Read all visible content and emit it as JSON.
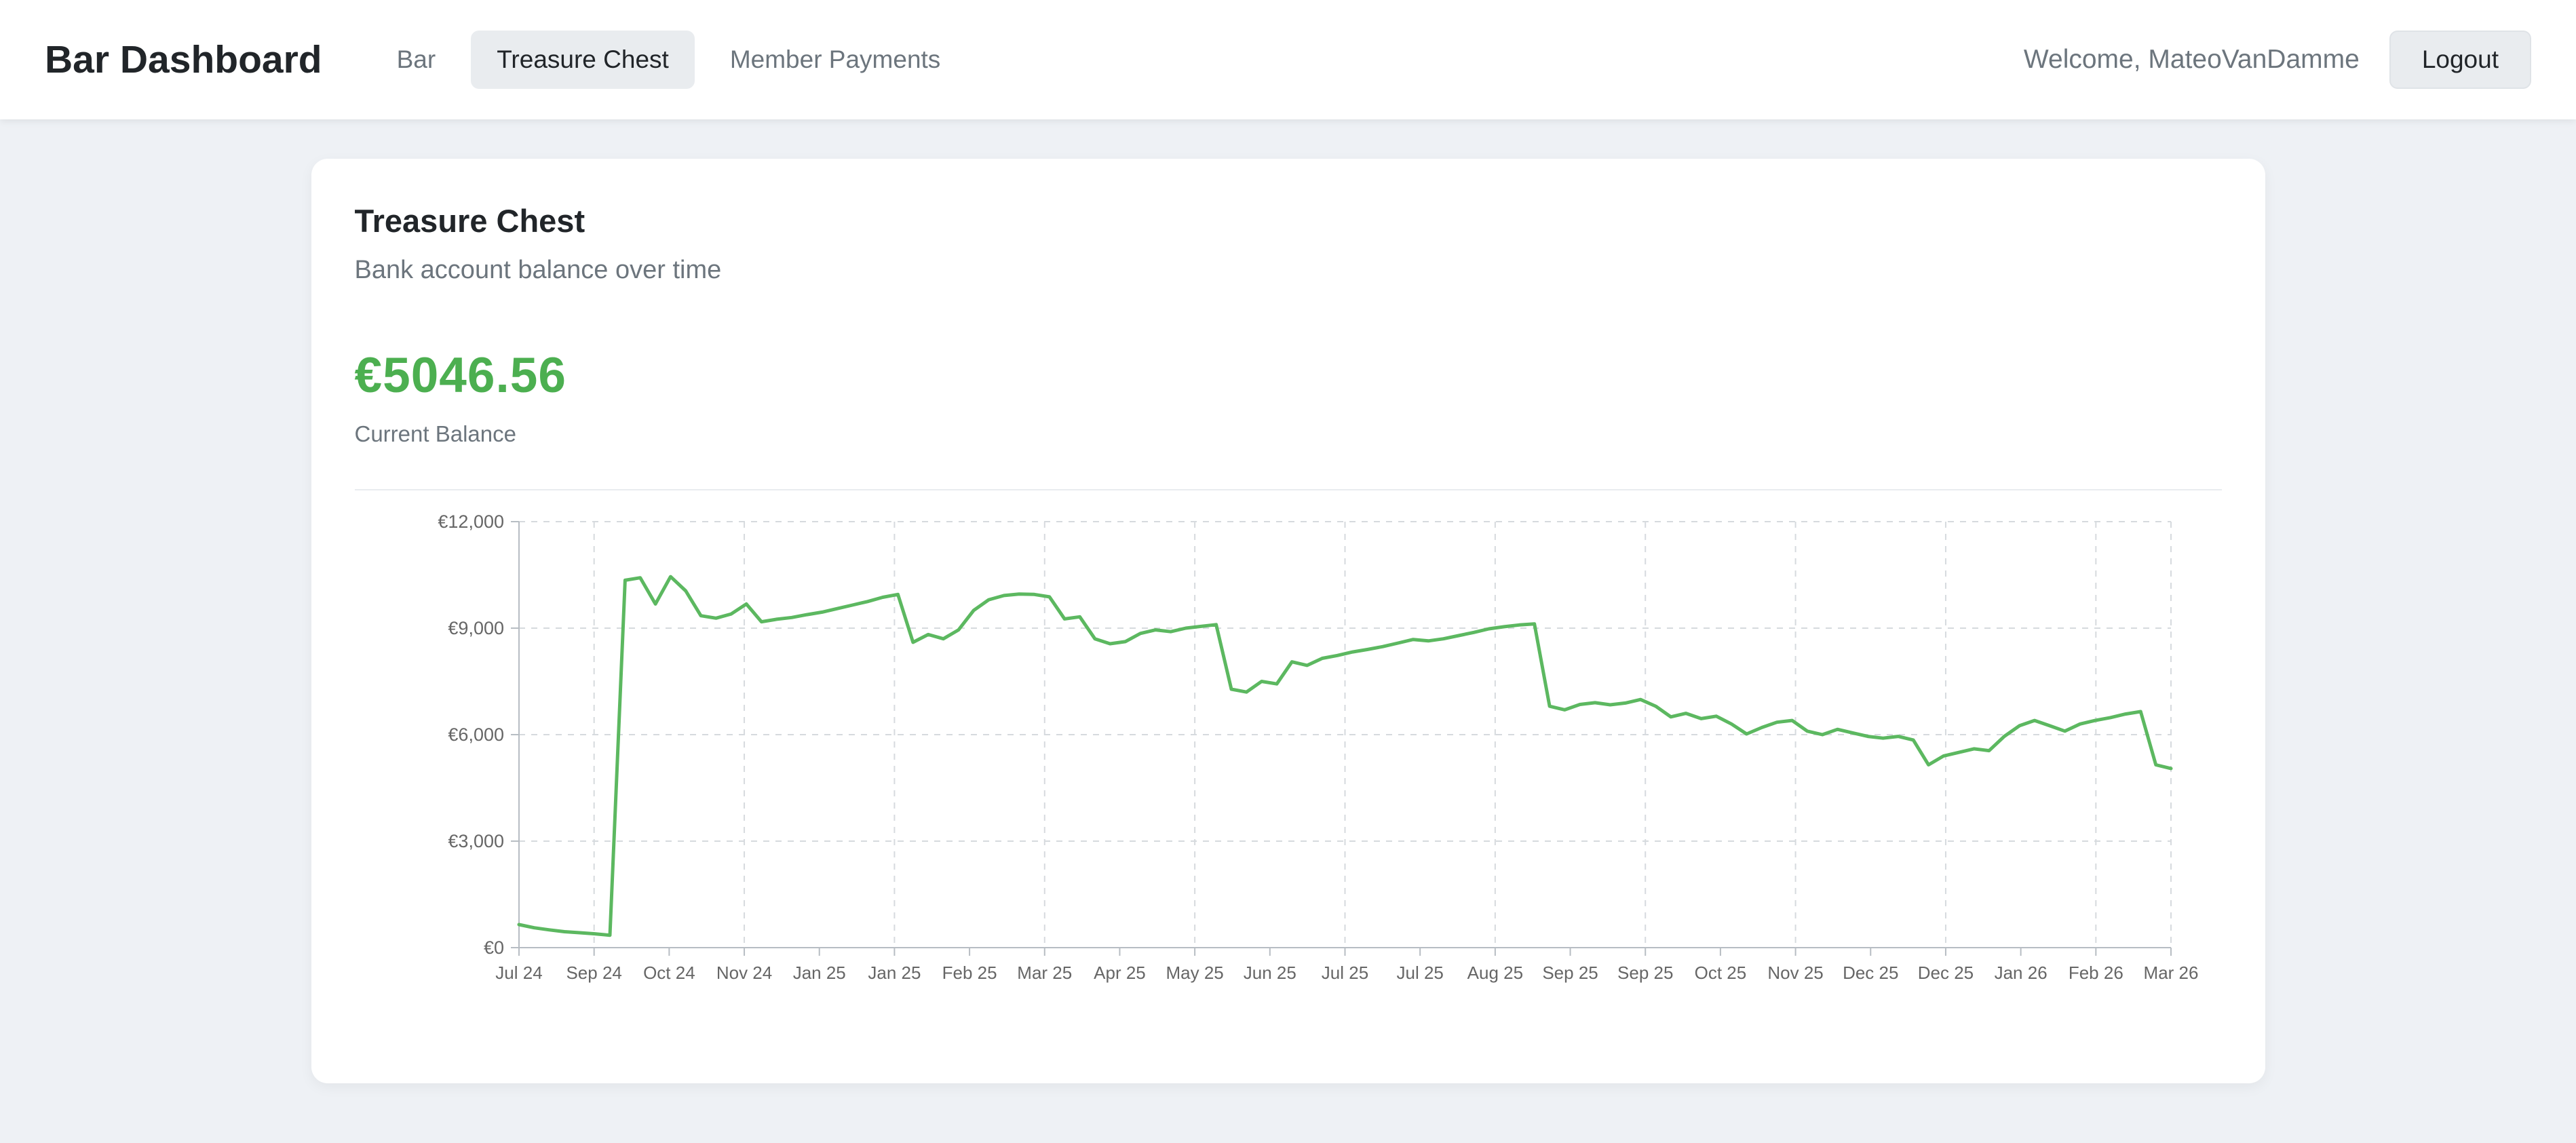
{
  "navbar": {
    "brand": "Bar Dashboard",
    "items": [
      {
        "label": "Bar",
        "active": false
      },
      {
        "label": "Treasure Chest",
        "active": true
      },
      {
        "label": "Member Payments",
        "active": false
      }
    ],
    "welcome": "Welcome, MateoVanDamme",
    "logout_label": "Logout"
  },
  "card": {
    "title": "Treasure Chest",
    "subtitle": "Bank account balance over time",
    "balance": "€5046.56",
    "balance_label": "Current Balance"
  },
  "colors": {
    "accent_green": "#4caf50",
    "line_green": "#5cb860",
    "grid": "#d6dade",
    "axis": "#b7bdc3",
    "tick_label": "#666666",
    "muted_bg": "#e9ecef"
  },
  "chart_data": {
    "type": "line",
    "title": "Bank account balance over time",
    "xlabel": "",
    "ylabel": "",
    "legend": false,
    "grid": true,
    "y_min": 0,
    "y_max": 12000,
    "line_color": "#5cb860",
    "y_ticks": [
      {
        "value": 0,
        "label": "€0"
      },
      {
        "value": 3000,
        "label": "€3,000"
      },
      {
        "value": 6000,
        "label": "€6,000"
      },
      {
        "value": 9000,
        "label": "€9,000"
      },
      {
        "value": 12000,
        "label": "€12,000"
      }
    ],
    "x_ticks": [
      {
        "label": "Jul 24",
        "grid": false
      },
      {
        "label": "Sep 24",
        "grid": true
      },
      {
        "label": "Oct 24",
        "grid": false
      },
      {
        "label": "Nov 24",
        "grid": true
      },
      {
        "label": "Jan 25",
        "grid": false
      },
      {
        "label": "Jan 25",
        "grid": true
      },
      {
        "label": "Feb 25",
        "grid": false
      },
      {
        "label": "Mar 25",
        "grid": true
      },
      {
        "label": "Apr 25",
        "grid": false
      },
      {
        "label": "May 25",
        "grid": true
      },
      {
        "label": "Jun 25",
        "grid": false
      },
      {
        "label": "Jul 25",
        "grid": true
      },
      {
        "label": "Jul 25",
        "grid": false
      },
      {
        "label": "Aug 25",
        "grid": true
      },
      {
        "label": "Sep 25",
        "grid": false
      },
      {
        "label": "Sep 25",
        "grid": true
      },
      {
        "label": "Oct 25",
        "grid": false
      },
      {
        "label": "Nov 25",
        "grid": true
      },
      {
        "label": "Dec 25",
        "grid": false
      },
      {
        "label": "Dec 25",
        "grid": true
      },
      {
        "label": "Jan 26",
        "grid": false
      },
      {
        "label": "Feb 26",
        "grid": true
      },
      {
        "label": "Mar 26",
        "grid": true
      }
    ],
    "values": [
      650,
      560,
      500,
      450,
      420,
      390,
      350,
      10350,
      10420,
      9680,
      10450,
      10050,
      9350,
      9280,
      9400,
      9680,
      9180,
      9250,
      9300,
      9380,
      9450,
      9550,
      9650,
      9750,
      9870,
      9950,
      8600,
      8820,
      8700,
      8950,
      9500,
      9800,
      9920,
      9960,
      9950,
      9880,
      9260,
      9320,
      8700,
      8560,
      8620,
      8850,
      8950,
      8900,
      9000,
      9050,
      9100,
      7280,
      7200,
      7500,
      7430,
      8050,
      7950,
      8150,
      8230,
      8330,
      8400,
      8480,
      8580,
      8680,
      8640,
      8700,
      8790,
      8880,
      8980,
      9040,
      9090,
      9120,
      6800,
      6700,
      6850,
      6900,
      6840,
      6890,
      6990,
      6800,
      6500,
      6600,
      6450,
      6520,
      6300,
      6020,
      6200,
      6350,
      6400,
      6100,
      6000,
      6150,
      6050,
      5950,
      5900,
      5950,
      5850,
      5150,
      5400,
      5500,
      5600,
      5550,
      5950,
      6250,
      6400,
      6250,
      6100,
      6300,
      6400,
      6480,
      6580,
      6650,
      5150,
      5046.56
    ]
  }
}
